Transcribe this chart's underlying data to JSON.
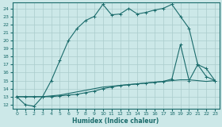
{
  "xlabel": "Humidex (Indice chaleur)",
  "bg_color": "#cce8e8",
  "grid_color": "#aacccc",
  "line_color": "#1a6b6b",
  "xlim": [
    -0.5,
    23.5
  ],
  "ylim": [
    11.5,
    24.7
  ],
  "xticks": [
    0,
    1,
    2,
    3,
    4,
    5,
    6,
    7,
    8,
    9,
    10,
    11,
    12,
    13,
    14,
    15,
    16,
    17,
    18,
    19,
    20,
    21,
    22,
    23
  ],
  "yticks": [
    12,
    13,
    14,
    15,
    16,
    17,
    18,
    19,
    20,
    21,
    22,
    23,
    24
  ],
  "line1_x": [
    0,
    1,
    2,
    3,
    4,
    5,
    6,
    7,
    8,
    9,
    10,
    11,
    12,
    13,
    14,
    15,
    16,
    17,
    18,
    19,
    20,
    21,
    22,
    23
  ],
  "line1_y": [
    13,
    12,
    11.8,
    13,
    15,
    17.5,
    20,
    21.5,
    22.5,
    23,
    24.5,
    23.2,
    23.3,
    24,
    23.3,
    23.5,
    23.8,
    24,
    24.5,
    23,
    21.5,
    17,
    15.5,
    15
  ],
  "line2_x": [
    0,
    1,
    2,
    3,
    4,
    5,
    6,
    7,
    8,
    9,
    10,
    11,
    12,
    13,
    14,
    15,
    16,
    17,
    18,
    19,
    20,
    21,
    22,
    23
  ],
  "line2_y": [
    13,
    13,
    13,
    13,
    13.1,
    13.2,
    13.4,
    13.6,
    13.8,
    14,
    14.2,
    14.3,
    14.4,
    14.5,
    14.6,
    14.7,
    14.8,
    14.9,
    15,
    15.1,
    15.1,
    15,
    14.9,
    15
  ],
  "line3_x": [
    0,
    1,
    2,
    3,
    4,
    5,
    6,
    7,
    8,
    9,
    10,
    11,
    12,
    13,
    14,
    15,
    16,
    17,
    18,
    19,
    20,
    21,
    22,
    23
  ],
  "line3_y": [
    13,
    13,
    13,
    13,
    13,
    13.1,
    13.2,
    13.3,
    13.5,
    13.7,
    14,
    14.2,
    14.4,
    14.5,
    14.6,
    14.7,
    14.8,
    14.9,
    15.2,
    19.5,
    15,
    17,
    16.5,
    15
  ]
}
